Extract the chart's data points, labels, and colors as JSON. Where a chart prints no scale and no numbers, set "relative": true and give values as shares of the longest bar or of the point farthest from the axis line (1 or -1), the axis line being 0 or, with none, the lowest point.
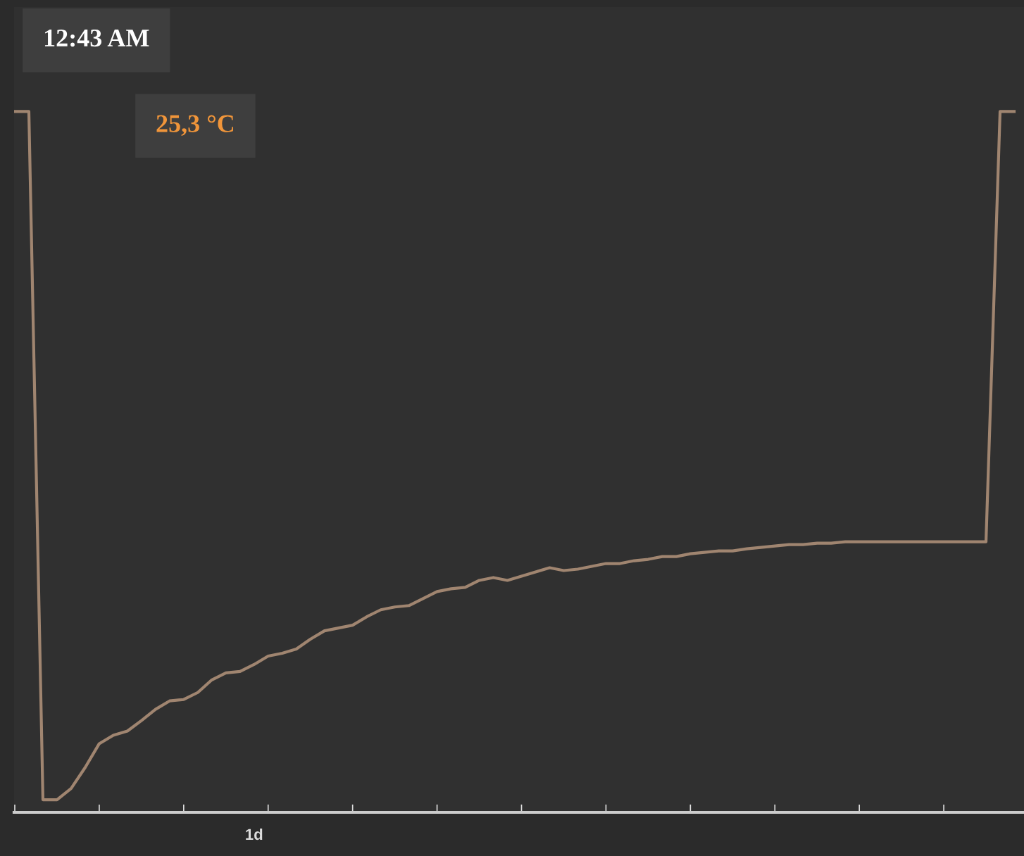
{
  "chart_data": {
    "type": "line",
    "relative": true,
    "color": "#a08570",
    "annotations": [
      "12:43 AM",
      "25,3 °C",
      "1d"
    ],
    "categories": [
      null,
      null,
      null,
      null,
      null,
      null,
      null,
      null,
      null,
      null,
      null,
      null,
      null,
      null,
      null,
      null,
      null,
      null,
      null,
      null,
      null,
      null,
      null,
      null,
      null,
      null,
      null,
      null,
      null,
      null,
      null,
      null,
      null,
      null,
      null,
      null,
      null,
      null,
      null,
      null,
      null,
      null,
      null,
      null,
      null,
      null,
      null,
      null,
      null,
      null,
      null,
      null,
      null,
      null,
      null,
      null,
      null,
      null,
      null,
      null,
      null,
      null,
      null,
      null,
      null,
      null,
      null,
      null,
      null,
      null,
      null,
      null
    ],
    "values": [
      1.0,
      1.0,
      0.018,
      0.018,
      0.034,
      0.064,
      0.098,
      0.11,
      0.116,
      0.131,
      0.147,
      0.159,
      0.161,
      0.171,
      0.189,
      0.199,
      0.201,
      0.211,
      0.223,
      0.227,
      0.233,
      0.247,
      0.259,
      0.263,
      0.267,
      0.279,
      0.289,
      0.293,
      0.295,
      0.305,
      0.315,
      0.319,
      0.321,
      0.331,
      0.335,
      0.331,
      0.337,
      0.343,
      0.349,
      0.345,
      0.347,
      0.351,
      0.355,
      0.355,
      0.359,
      0.361,
      0.365,
      0.365,
      0.369,
      0.371,
      0.373,
      0.373,
      0.376,
      0.378,
      0.38,
      0.382,
      0.382,
      0.384,
      0.384,
      0.386,
      0.386,
      0.386,
      0.386,
      0.386,
      0.386,
      0.386,
      0.386,
      0.386,
      0.386,
      0.386,
      1.0,
      1.0
    ]
  }
}
